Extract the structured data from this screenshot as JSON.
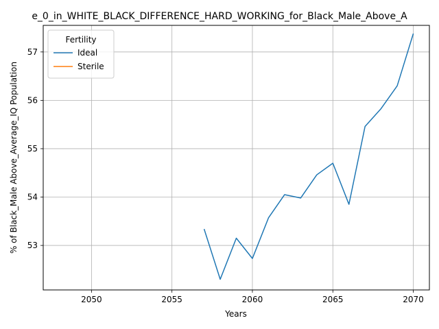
{
  "chart_data": {
    "type": "line",
    "title": "e_0_in_WHITE_BLACK_DIFFERENCE_HARD_WORKING_for_Black_Male_Above_A",
    "xlabel": "Years",
    "ylabel": "% of Black_Male Above_Average_IQ Population",
    "xlim": [
      2047,
      2071
    ],
    "ylim": [
      52.08,
      57.55
    ],
    "x_ticks": [
      2050,
      2055,
      2060,
      2065,
      2070
    ],
    "y_ticks": [
      53,
      54,
      55,
      56,
      57
    ],
    "grid": true,
    "legend": {
      "title": "Fertility",
      "placement": "top-left"
    },
    "series": [
      {
        "name": "Ideal",
        "color": "#1f77b4",
        "x": [
          2057,
          2058,
          2059,
          2060,
          2061,
          2062,
          2063,
          2064,
          2065,
          2066,
          2067,
          2068,
          2069,
          2070
        ],
        "y": [
          53.34,
          52.3,
          53.15,
          52.73,
          53.57,
          54.05,
          53.98,
          54.46,
          54.7,
          53.85,
          55.46,
          55.83,
          56.3,
          57.38
        ]
      },
      {
        "name": "Sterile",
        "color": "#ff7f0e",
        "x": [],
        "y": []
      }
    ]
  }
}
